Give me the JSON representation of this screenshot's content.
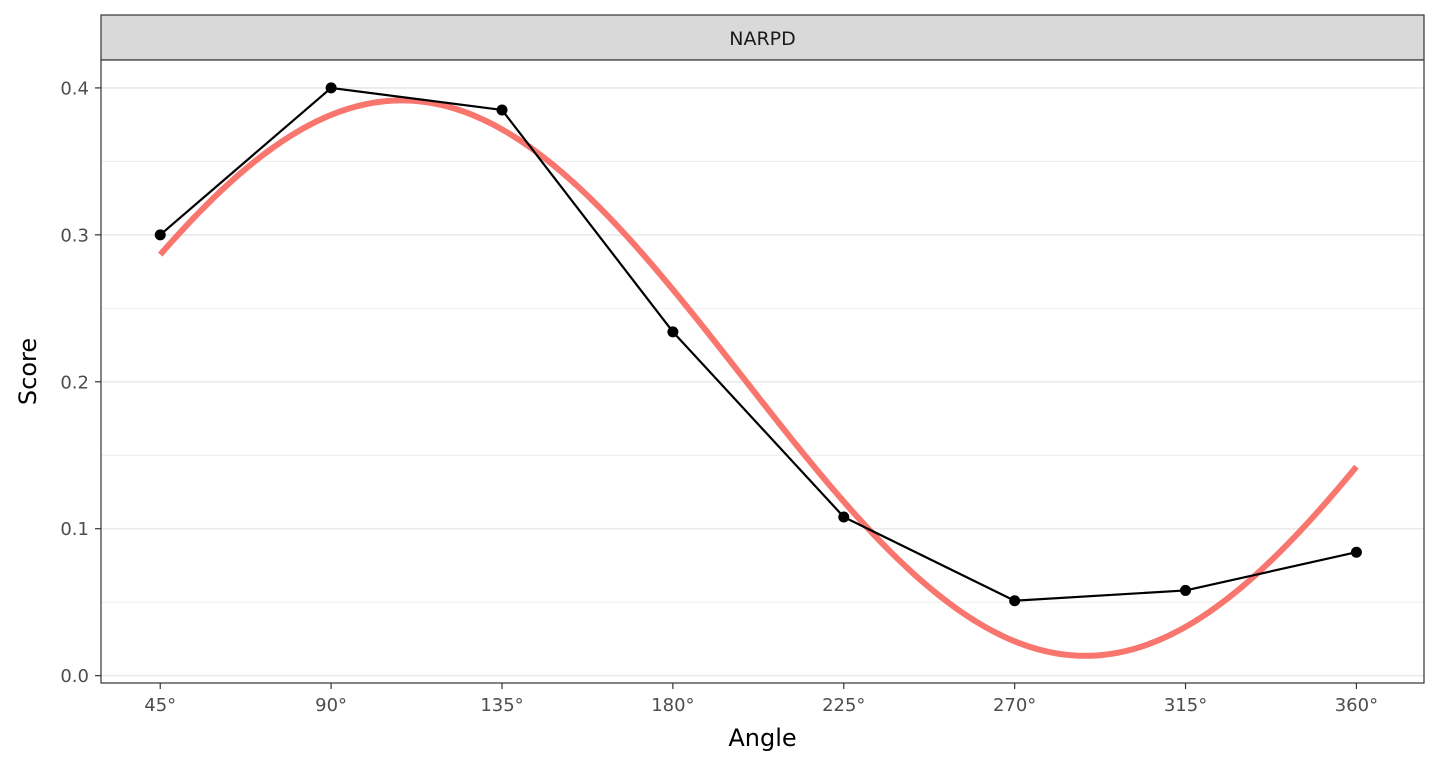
{
  "chart_data": {
    "type": "line",
    "facet": "NARPD",
    "xlabel": "Angle",
    "ylabel": "Score",
    "x": [
      45,
      90,
      135,
      180,
      225,
      270,
      315,
      360
    ],
    "x_tick_labels": [
      "45°",
      "90°",
      "135°",
      "180°",
      "225°",
      "270°",
      "315°",
      "360°"
    ],
    "y_ticks": [
      0.0,
      0.1,
      0.2,
      0.3,
      0.4
    ],
    "y_tick_labels": [
      "0.0",
      "0.1",
      "0.2",
      "0.3",
      "0.4"
    ],
    "xlim": [
      29.4,
      377.8
    ],
    "ylim": [
      -0.005,
      0.419
    ],
    "grid": true,
    "series": [
      {
        "kind": "observed",
        "style": "line-with-points",
        "color": "#000000",
        "values": [
          0.3,
          0.4,
          0.385,
          0.234,
          0.108,
          0.051,
          0.058,
          0.084
        ]
      },
      {
        "kind": "fitted-curve",
        "style": "smooth-line",
        "color": "#F8766D",
        "elevation": 0.2025,
        "amplitude": 0.189,
        "displacement_deg": 108.6,
        "x_range": [
          45,
          360
        ]
      }
    ]
  }
}
